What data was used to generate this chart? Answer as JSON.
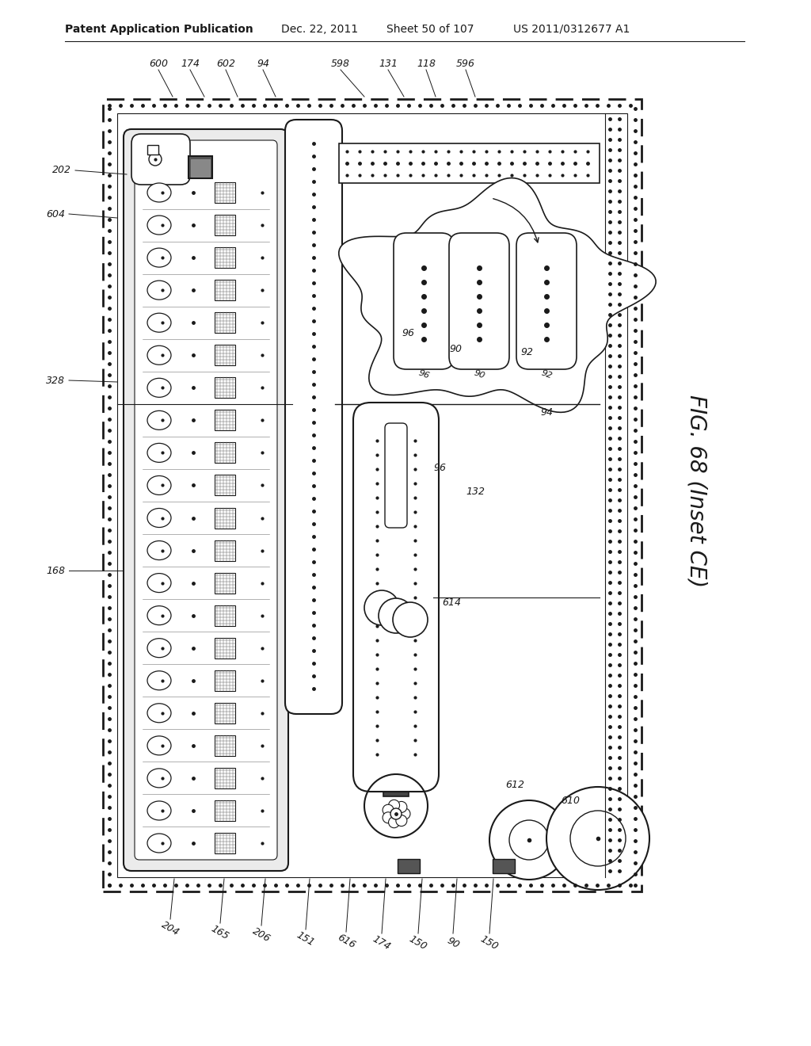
{
  "bg_color": "#ffffff",
  "line_color": "#1a1a1a",
  "header_text": "Patent Application Publication",
  "header_date": "Dec. 22, 2011",
  "header_sheet": "Sheet 50 of 107",
  "header_patent": "US 2011/0312677 A1",
  "figure_label": "FIG. 68 (Inset CE)",
  "header_fontsize": 10,
  "label_fontsize": 8
}
